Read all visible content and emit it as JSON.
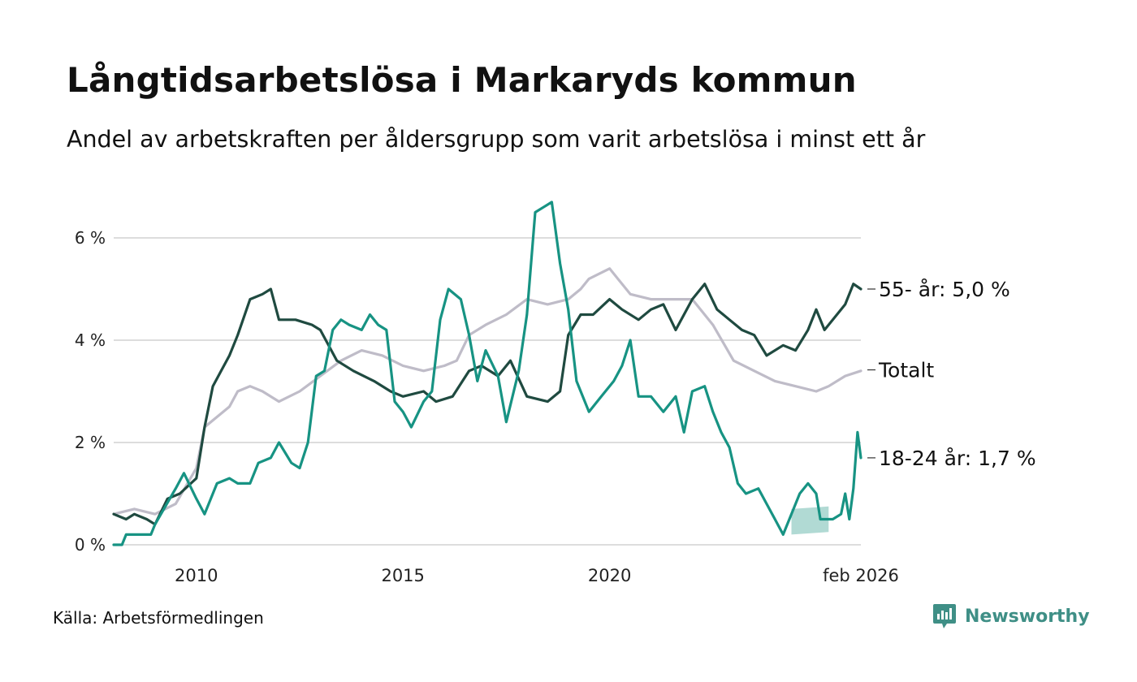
{
  "header": {
    "title": "Långtidsarbetslösa i Markaryds kommun",
    "subtitle": "Andel av arbetskraften per åldersgrupp som varit arbetslösa i minst ett år"
  },
  "footer": {
    "source": "Källa: Arbetsförmedlingen",
    "brand": "Newsworthy"
  },
  "colors": {
    "older": "#1f4a40",
    "young": "#179383",
    "total": "#bfbcc8",
    "young_band": "#a9d6cf",
    "grid": "#dddddd"
  },
  "chart_data": {
    "type": "line",
    "title": "Långtidsarbetslösa i Markaryds kommun",
    "xlabel": "",
    "ylabel": "",
    "x_range": [
      2008.0,
      2026.08
    ],
    "ylim": [
      0,
      7
    ],
    "yticks": [
      {
        "value": 0,
        "label": "0 %"
      },
      {
        "value": 2,
        "label": "2 %"
      },
      {
        "value": 4,
        "label": "4 %"
      },
      {
        "value": 6,
        "label": "6 %"
      }
    ],
    "xticks": [
      {
        "value": 2010,
        "label": "2010"
      },
      {
        "value": 2015,
        "label": "2015"
      },
      {
        "value": 2020,
        "label": "2020"
      },
      {
        "value": 2026.08,
        "label": "feb 2026"
      }
    ],
    "series": [
      {
        "name": "Totalt",
        "label": "Totalt",
        "color": "#bfbcc8",
        "points": [
          [
            2008.0,
            0.6
          ],
          [
            2008.5,
            0.7
          ],
          [
            2009.0,
            0.6
          ],
          [
            2009.5,
            0.8
          ],
          [
            2010.0,
            1.5
          ],
          [
            2010.2,
            2.3
          ],
          [
            2010.5,
            2.5
          ],
          [
            2010.8,
            2.7
          ],
          [
            2011.0,
            3.0
          ],
          [
            2011.3,
            3.1
          ],
          [
            2011.6,
            3.0
          ],
          [
            2012.0,
            2.8
          ],
          [
            2012.5,
            3.0
          ],
          [
            2013.0,
            3.3
          ],
          [
            2013.5,
            3.6
          ],
          [
            2014.0,
            3.8
          ],
          [
            2014.5,
            3.7
          ],
          [
            2015.0,
            3.5
          ],
          [
            2015.5,
            3.4
          ],
          [
            2016.0,
            3.5
          ],
          [
            2016.3,
            3.6
          ],
          [
            2016.6,
            4.1
          ],
          [
            2017.0,
            4.3
          ],
          [
            2017.5,
            4.5
          ],
          [
            2018.0,
            4.8
          ],
          [
            2018.5,
            4.7
          ],
          [
            2019.0,
            4.8
          ],
          [
            2019.3,
            5.0
          ],
          [
            2019.5,
            5.2
          ],
          [
            2020.0,
            5.4
          ],
          [
            2020.5,
            4.9
          ],
          [
            2021.0,
            4.8
          ],
          [
            2021.5,
            4.8
          ],
          [
            2022.0,
            4.8
          ],
          [
            2022.5,
            4.3
          ],
          [
            2023.0,
            3.6
          ],
          [
            2023.5,
            3.4
          ],
          [
            2024.0,
            3.2
          ],
          [
            2024.5,
            3.1
          ],
          [
            2025.0,
            3.0
          ],
          [
            2025.3,
            3.1
          ],
          [
            2025.7,
            3.3
          ],
          [
            2026.08,
            3.4
          ]
        ]
      },
      {
        "name": "55- år",
        "label": "55- år: 5,0 %",
        "color": "#1f4a40",
        "points": [
          [
            2008.0,
            0.6
          ],
          [
            2008.3,
            0.5
          ],
          [
            2008.5,
            0.6
          ],
          [
            2008.8,
            0.5
          ],
          [
            2009.0,
            0.4
          ],
          [
            2009.3,
            0.9
          ],
          [
            2009.6,
            1.0
          ],
          [
            2010.0,
            1.3
          ],
          [
            2010.2,
            2.3
          ],
          [
            2010.4,
            3.1
          ],
          [
            2010.6,
            3.4
          ],
          [
            2010.8,
            3.7
          ],
          [
            2011.0,
            4.1
          ],
          [
            2011.3,
            4.8
          ],
          [
            2011.6,
            4.9
          ],
          [
            2011.8,
            5.0
          ],
          [
            2012.0,
            4.4
          ],
          [
            2012.4,
            4.4
          ],
          [
            2012.8,
            4.3
          ],
          [
            2013.0,
            4.2
          ],
          [
            2013.4,
            3.6
          ],
          [
            2013.8,
            3.4
          ],
          [
            2014.3,
            3.2
          ],
          [
            2014.7,
            3.0
          ],
          [
            2015.0,
            2.9
          ],
          [
            2015.5,
            3.0
          ],
          [
            2015.8,
            2.8
          ],
          [
            2016.2,
            2.9
          ],
          [
            2016.6,
            3.4
          ],
          [
            2016.9,
            3.5
          ],
          [
            2017.3,
            3.3
          ],
          [
            2017.6,
            3.6
          ],
          [
            2018.0,
            2.9
          ],
          [
            2018.5,
            2.8
          ],
          [
            2018.8,
            3.0
          ],
          [
            2019.0,
            4.1
          ],
          [
            2019.3,
            4.5
          ],
          [
            2019.6,
            4.5
          ],
          [
            2020.0,
            4.8
          ],
          [
            2020.3,
            4.6
          ],
          [
            2020.7,
            4.4
          ],
          [
            2021.0,
            4.6
          ],
          [
            2021.3,
            4.7
          ],
          [
            2021.6,
            4.2
          ],
          [
            2022.0,
            4.8
          ],
          [
            2022.3,
            5.1
          ],
          [
            2022.6,
            4.6
          ],
          [
            2022.9,
            4.4
          ],
          [
            2023.2,
            4.2
          ],
          [
            2023.5,
            4.1
          ],
          [
            2023.8,
            3.7
          ],
          [
            2024.2,
            3.9
          ],
          [
            2024.5,
            3.8
          ],
          [
            2024.8,
            4.2
          ],
          [
            2025.0,
            4.6
          ],
          [
            2025.2,
            4.2
          ],
          [
            2025.5,
            4.5
          ],
          [
            2025.7,
            4.7
          ],
          [
            2025.9,
            5.1
          ],
          [
            2026.08,
            5.0
          ]
        ]
      },
      {
        "name": "18-24 år",
        "label": "18-24 år: 1,7 %",
        "color": "#179383",
        "points": [
          [
            2008.0,
            0.0
          ],
          [
            2008.2,
            0.0
          ],
          [
            2008.3,
            0.2
          ],
          [
            2008.9,
            0.2
          ],
          [
            2009.0,
            0.4
          ],
          [
            2009.5,
            1.1
          ],
          [
            2009.7,
            1.4
          ],
          [
            2010.0,
            0.9
          ],
          [
            2010.2,
            0.6
          ],
          [
            2010.5,
            1.2
          ],
          [
            2010.8,
            1.3
          ],
          [
            2011.0,
            1.2
          ],
          [
            2011.3,
            1.2
          ],
          [
            2011.5,
            1.6
          ],
          [
            2011.8,
            1.7
          ],
          [
            2012.0,
            2.0
          ],
          [
            2012.3,
            1.6
          ],
          [
            2012.5,
            1.5
          ],
          [
            2012.7,
            2.0
          ],
          [
            2012.9,
            3.3
          ],
          [
            2013.1,
            3.4
          ],
          [
            2013.3,
            4.2
          ],
          [
            2013.5,
            4.4
          ],
          [
            2013.7,
            4.3
          ],
          [
            2014.0,
            4.2
          ],
          [
            2014.2,
            4.5
          ],
          [
            2014.4,
            4.3
          ],
          [
            2014.6,
            4.2
          ],
          [
            2014.8,
            2.8
          ],
          [
            2015.0,
            2.6
          ],
          [
            2015.2,
            2.3
          ],
          [
            2015.5,
            2.8
          ],
          [
            2015.7,
            3.0
          ],
          [
            2015.9,
            4.4
          ],
          [
            2016.1,
            5.0
          ],
          [
            2016.4,
            4.8
          ],
          [
            2016.6,
            4.1
          ],
          [
            2016.8,
            3.2
          ],
          [
            2017.0,
            3.8
          ],
          [
            2017.3,
            3.3
          ],
          [
            2017.5,
            2.4
          ],
          [
            2017.8,
            3.4
          ],
          [
            2018.0,
            4.5
          ],
          [
            2018.2,
            6.5
          ],
          [
            2018.4,
            6.6
          ],
          [
            2018.6,
            6.7
          ],
          [
            2018.8,
            5.5
          ],
          [
            2019.0,
            4.6
          ],
          [
            2019.2,
            3.2
          ],
          [
            2019.5,
            2.6
          ],
          [
            2019.8,
            2.9
          ],
          [
            2020.1,
            3.2
          ],
          [
            2020.3,
            3.5
          ],
          [
            2020.5,
            4.0
          ],
          [
            2020.7,
            2.9
          ],
          [
            2021.0,
            2.9
          ],
          [
            2021.3,
            2.6
          ],
          [
            2021.6,
            2.9
          ],
          [
            2021.8,
            2.2
          ],
          [
            2022.0,
            3.0
          ],
          [
            2022.3,
            3.1
          ],
          [
            2022.5,
            2.6
          ],
          [
            2022.7,
            2.2
          ],
          [
            2022.9,
            1.9
          ],
          [
            2023.1,
            1.2
          ],
          [
            2023.3,
            1.0
          ],
          [
            2023.6,
            1.1
          ],
          [
            2023.8,
            0.8
          ],
          [
            2024.0,
            0.5
          ],
          [
            2024.2,
            0.2
          ],
          [
            2024.4,
            0.6
          ],
          [
            2024.6,
            1.0
          ],
          [
            2024.8,
            1.2
          ],
          [
            2025.0,
            1.0
          ],
          [
            2025.1,
            0.5
          ],
          [
            2025.4,
            0.5
          ],
          [
            2025.6,
            0.6
          ],
          [
            2025.7,
            1.0
          ],
          [
            2025.8,
            0.5
          ],
          [
            2025.9,
            1.1
          ],
          [
            2026.0,
            2.2
          ],
          [
            2026.08,
            1.7
          ]
        ]
      }
    ]
  }
}
